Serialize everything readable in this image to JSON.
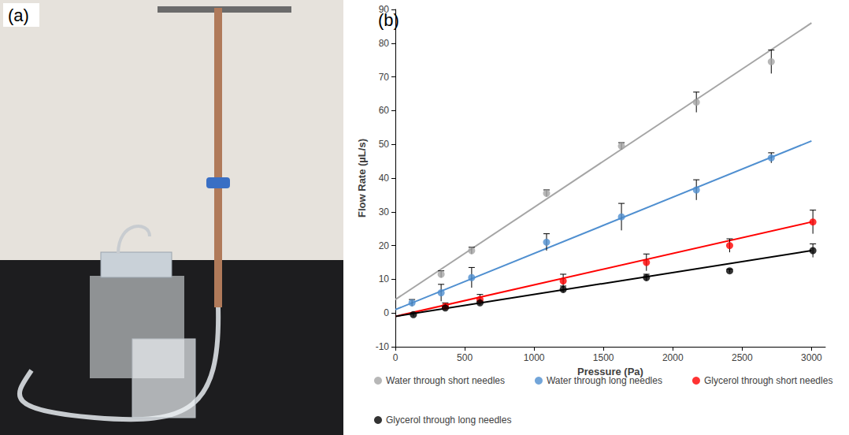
{
  "photo": {
    "label": "(a)"
  },
  "chart_data": {
    "type": "scatter",
    "panel_label": "(b)",
    "x_label": "Pressure (Pa)",
    "y_label": "Flow Rate (µL/s)",
    "xlim": [
      0,
      3100
    ],
    "xticks": [
      0,
      500,
      1000,
      1500,
      2000,
      2500,
      3000
    ],
    "ylim": [
      -10,
      90
    ],
    "yticks": [
      -10,
      0,
      10,
      20,
      30,
      40,
      50,
      60,
      70,
      80,
      90
    ],
    "grid": false,
    "legend": "bottom",
    "marker": "circle",
    "series": [
      {
        "name": "Water through short needles",
        "color": "#a5a5a5",
        "x": [
          330,
          550,
          1090,
          1630,
          2170,
          2710
        ],
        "values": [
          11.5,
          18.5,
          35.5,
          49.5,
          62.5,
          74.5
        ],
        "errors": [
          1,
          1,
          1,
          1,
          3,
          3.5
        ],
        "fit": {
          "x": [
            0,
            3000
          ],
          "values": [
            4,
            86
          ]
        }
      },
      {
        "name": "Water through long needles",
        "color": "#4f8fd0",
        "x": [
          120,
          330,
          550,
          1090,
          1630,
          2170,
          2710
        ],
        "values": [
          3,
          6,
          10.5,
          21,
          28.5,
          36.5,
          46
        ],
        "errors": [
          1,
          2.5,
          3,
          2.5,
          4,
          3,
          1.5
        ],
        "fit": {
          "x": [
            0,
            3000
          ],
          "values": [
            1,
            51
          ]
        }
      },
      {
        "name": "Glycerol through short needles",
        "color": "#ff0000",
        "x": [
          360,
          610,
          1210,
          1810,
          2410,
          3010
        ],
        "values": [
          2,
          4,
          9.5,
          15,
          20,
          27
        ],
        "errors": [
          1,
          1.5,
          2,
          2.5,
          2,
          3.5
        ],
        "fit": {
          "x": [
            0,
            3000
          ],
          "values": [
            -1,
            27
          ]
        }
      },
      {
        "name": "Glycerol through long needles",
        "color": "#000000",
        "x": [
          130,
          360,
          610,
          1210,
          1810,
          2410,
          3010
        ],
        "values": [
          -0.5,
          1.5,
          3,
          7,
          10.5,
          12.5,
          18.5
        ],
        "errors": [
          0.5,
          0.5,
          0.5,
          1,
          1,
          0.5,
          2
        ],
        "fit": {
          "x": [
            0,
            3000
          ],
          "values": [
            -1,
            18.5
          ]
        }
      }
    ]
  }
}
